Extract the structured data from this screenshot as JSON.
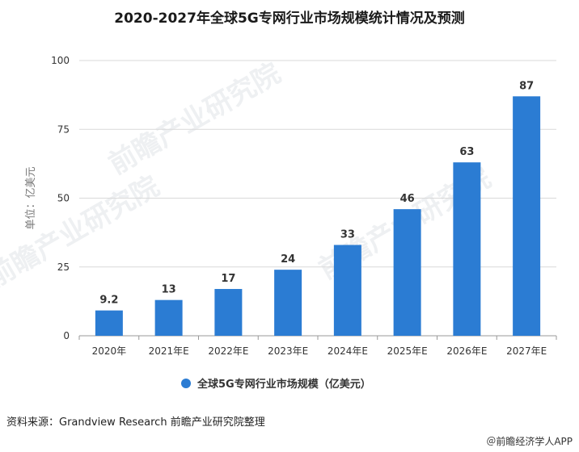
{
  "title": "2020-2027年全球5G专网行业市场规模统计情况及预测",
  "source": "资料来源：Grandview Research 前瞻产业研究院整理",
  "brand": "＠前瞻经济学人APP",
  "watermark": "前瞻产业研究院",
  "colors": {
    "bar": "#2b7cd3",
    "grid": "#d9d9d9",
    "axis": "#999999"
  },
  "chart_data": {
    "type": "bar",
    "title": "2020-2027年全球5G专网行业市场规模统计情况及预测",
    "ylabel": "单位：亿美元",
    "xlabel": "",
    "categories": [
      "2020年",
      "2021年E",
      "2022年E",
      "2023年E",
      "2024年E",
      "2025年E",
      "2026年E",
      "2027年E"
    ],
    "series": [
      {
        "name": "全球5G专网行业市场规模（亿美元）",
        "values": [
          9.2,
          13,
          17,
          24,
          33,
          46,
          63,
          87
        ]
      }
    ],
    "data_labels": [
      "9.2",
      "13",
      "17",
      "24",
      "33",
      "46",
      "63",
      "87"
    ],
    "ylim": [
      0,
      100
    ],
    "yticks": [
      0,
      25,
      50,
      75,
      100
    ],
    "legend": "bottom-center",
    "grid": true
  }
}
